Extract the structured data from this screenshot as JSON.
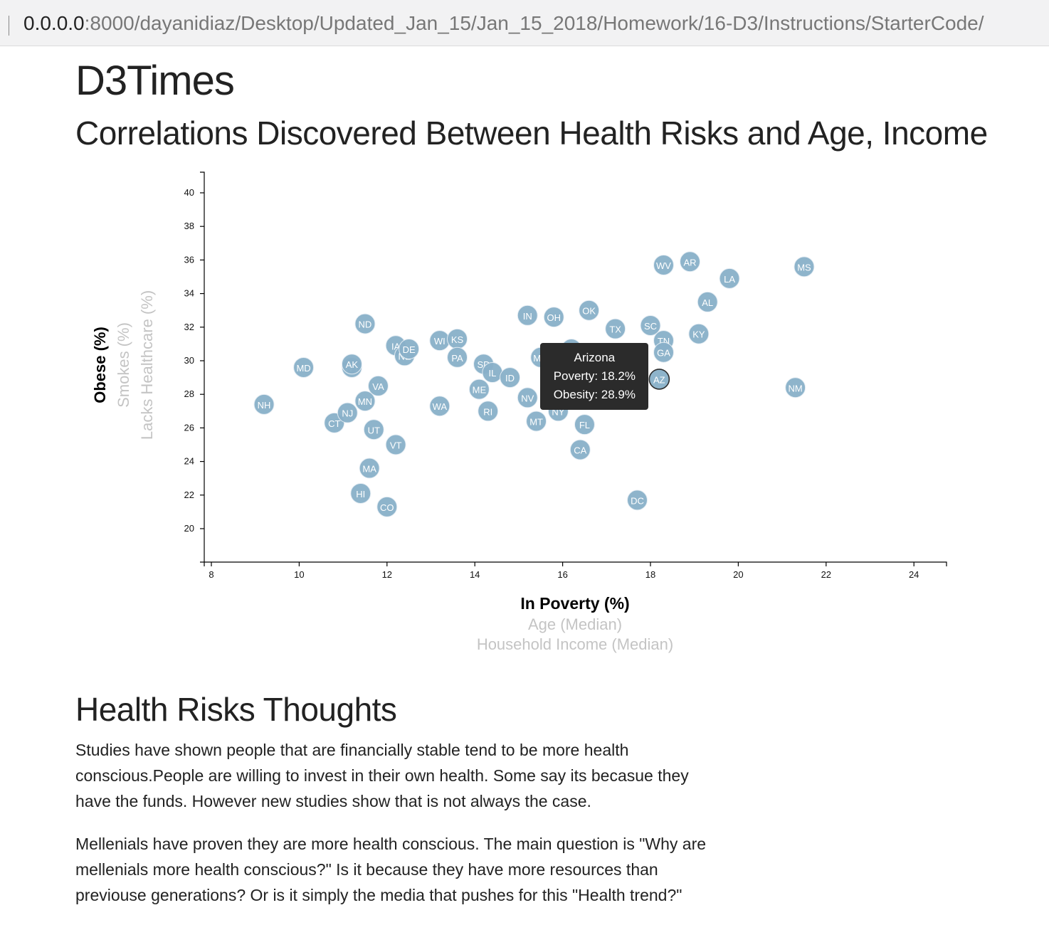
{
  "browser": {
    "url_host": "0.0.0.0",
    "url_rest": ":8000/dayanidiaz/Desktop/Updated_Jan_15/Jan_15_2018/Homework/16-D3/Instructions/StarterCode/"
  },
  "page": {
    "title": "D3Times",
    "subtitle": "Correlations Discovered Between Health Risks and Age, Income",
    "section_title": "Health Risks Thoughts",
    "paragraph_1": "Studies have shown people that are financially stable tend to be more health conscious.People are willing to invest in their own health. Some say its becasue they have the funds. However new studies show that is not always the case.",
    "paragraph_2": "Mellenials have proven they are more health conscious. The main question is \"Why are mellenials more health conscious?\" Is it because they have more resources than previouse generations? Or is it simply the media that pushes for this \"Health trend?\""
  },
  "colors": {
    "circle_fill": "#89b0c9",
    "active_label": "#000000",
    "inactive_label": "#c4c4c4",
    "tooltip_bg": "#2b2b2b"
  },
  "tooltip": {
    "state": "Arizona",
    "line1": "Poverty: 18.2%",
    "line2": "Obesity: 28.9%"
  },
  "chart_data": {
    "type": "scatter",
    "xlim": [
      8,
      25
    ],
    "ylim": [
      18,
      41
    ],
    "x_ticks": [
      8,
      10,
      12,
      14,
      16,
      18,
      20,
      22,
      24
    ],
    "y_ticks": [
      20,
      22,
      24,
      26,
      28,
      30,
      32,
      34,
      36,
      38,
      40
    ],
    "x_labels": [
      {
        "text": "In Poverty (%)",
        "active": true
      },
      {
        "text": "Age (Median)",
        "active": false
      },
      {
        "text": "Household Income (Median)",
        "active": false
      }
    ],
    "y_labels": [
      {
        "text": "Obese (%)",
        "active": true
      },
      {
        "text": "Smokes (%)",
        "active": false
      },
      {
        "text": "Lacks Healthcare (%)",
        "active": false
      }
    ],
    "points": [
      {
        "abbr": "NH",
        "x": 9.2,
        "y": 27.4
      },
      {
        "abbr": "MD",
        "x": 10.1,
        "y": 29.6
      },
      {
        "abbr": "CT",
        "x": 10.8,
        "y": 26.3
      },
      {
        "abbr": "NJ",
        "x": 11.1,
        "y": 26.9
      },
      {
        "abbr": "WY",
        "x": 11.2,
        "y": 29.6
      },
      {
        "abbr": "AK",
        "x": 11.2,
        "y": 29.8
      },
      {
        "abbr": "MN",
        "x": 11.5,
        "y": 27.6
      },
      {
        "abbr": "ND",
        "x": 11.5,
        "y": 32.2
      },
      {
        "abbr": "HI",
        "x": 11.4,
        "y": 22.1
      },
      {
        "abbr": "MA",
        "x": 11.6,
        "y": 23.6
      },
      {
        "abbr": "UT",
        "x": 11.7,
        "y": 25.9
      },
      {
        "abbr": "VA",
        "x": 11.8,
        "y": 28.5
      },
      {
        "abbr": "CO",
        "x": 12.0,
        "y": 21.3
      },
      {
        "abbr": "IA",
        "x": 12.2,
        "y": 30.9
      },
      {
        "abbr": "VT",
        "x": 12.2,
        "y": 25.0
      },
      {
        "abbr": "NE",
        "x": 12.4,
        "y": 30.3
      },
      {
        "abbr": "DE",
        "x": 12.5,
        "y": 30.7
      },
      {
        "abbr": "WI",
        "x": 13.2,
        "y": 31.2
      },
      {
        "abbr": "WA",
        "x": 13.2,
        "y": 27.3
      },
      {
        "abbr": "KS",
        "x": 13.6,
        "y": 31.3
      },
      {
        "abbr": "PA",
        "x": 13.6,
        "y": 30.2
      },
      {
        "abbr": "ME",
        "x": 14.1,
        "y": 28.3
      },
      {
        "abbr": "SD",
        "x": 14.2,
        "y": 29.8
      },
      {
        "abbr": "IL",
        "x": 14.4,
        "y": 29.3
      },
      {
        "abbr": "RI",
        "x": 14.3,
        "y": 27.0
      },
      {
        "abbr": "ID",
        "x": 14.8,
        "y": 29.0
      },
      {
        "abbr": "IN",
        "x": 15.2,
        "y": 32.7
      },
      {
        "abbr": "NV",
        "x": 15.2,
        "y": 27.8
      },
      {
        "abbr": "MO",
        "x": 15.5,
        "y": 30.2
      },
      {
        "abbr": "MT",
        "x": 15.4,
        "y": 26.4
      },
      {
        "abbr": "OH",
        "x": 15.8,
        "y": 32.6
      },
      {
        "abbr": "NY",
        "x": 15.9,
        "y": 27.0
      },
      {
        "abbr": "MI",
        "x": 16.2,
        "y": 30.7
      },
      {
        "abbr": "OK",
        "x": 16.6,
        "y": 33.0
      },
      {
        "abbr": "FL",
        "x": 16.5,
        "y": 26.2
      },
      {
        "abbr": "CA",
        "x": 16.4,
        "y": 24.7
      },
      {
        "abbr": "TX",
        "x": 17.2,
        "y": 31.9
      },
      {
        "abbr": "NC",
        "x": 17.2,
        "y": 29.7
      },
      {
        "abbr": "DC",
        "x": 17.7,
        "y": 21.7
      },
      {
        "abbr": "SC",
        "x": 18.0,
        "y": 32.1
      },
      {
        "abbr": "AZ",
        "x": 18.2,
        "y": 28.9
      },
      {
        "abbr": "TN",
        "x": 18.3,
        "y": 31.2
      },
      {
        "abbr": "GA",
        "x": 18.3,
        "y": 30.5
      },
      {
        "abbr": "WV",
        "x": 18.3,
        "y": 35.7
      },
      {
        "abbr": "AR",
        "x": 18.9,
        "y": 35.9
      },
      {
        "abbr": "KY",
        "x": 19.1,
        "y": 31.6
      },
      {
        "abbr": "AL",
        "x": 19.3,
        "y": 33.5
      },
      {
        "abbr": "LA",
        "x": 19.8,
        "y": 34.9
      },
      {
        "abbr": "NM",
        "x": 21.3,
        "y": 28.4
      },
      {
        "abbr": "MS",
        "x": 21.5,
        "y": 35.6
      }
    ],
    "active_point": "AZ"
  }
}
